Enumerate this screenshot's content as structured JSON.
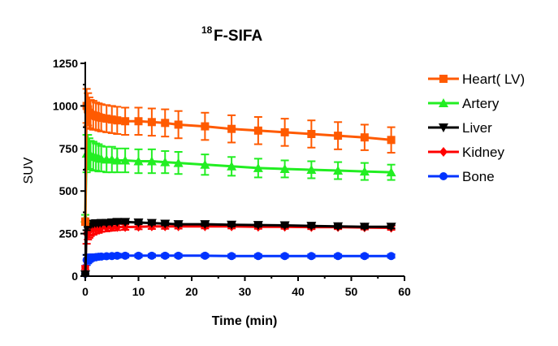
{
  "chart_data": {
    "type": "line",
    "title_superscript": "18",
    "title_main": "F-SIFA",
    "xlabel": "Time (min)",
    "ylabel": "SUV",
    "xlim": [
      0,
      60
    ],
    "ylim": [
      0,
      1250
    ],
    "x_ticks": [
      0,
      10,
      20,
      30,
      40,
      50,
      60
    ],
    "y_ticks": [
      0,
      250,
      500,
      750,
      1000,
      1250
    ],
    "legend_position": "right",
    "series": [
      {
        "name": "Heart( LV)",
        "color": "#ff5a00",
        "marker": "square",
        "x": [
          0,
          0.25,
          0.5,
          0.75,
          1,
          1.5,
          2,
          2.5,
          3,
          4,
          5,
          6,
          7.5,
          10,
          12.5,
          15,
          17.5,
          22.5,
          27.5,
          32.5,
          37.5,
          42.5,
          47.5,
          52.5,
          57.5
        ],
        "y": [
          320,
          1000,
          980,
          960,
          950,
          945,
          940,
          935,
          930,
          925,
          920,
          915,
          910,
          910,
          905,
          900,
          890,
          880,
          865,
          855,
          845,
          835,
          825,
          815,
          800
        ],
        "err": [
          20,
          100,
          95,
          90,
          85,
          85,
          80,
          80,
          80,
          80,
          80,
          80,
          80,
          80,
          80,
          80,
          80,
          80,
          80,
          80,
          80,
          80,
          80,
          75,
          75
        ]
      },
      {
        "name": "Artery",
        "color": "#22ee22",
        "marker": "triangle-up",
        "x": [
          0,
          0.25,
          0.5,
          0.75,
          1,
          1.5,
          2,
          2.5,
          3,
          4,
          5,
          6,
          7.5,
          10,
          12.5,
          15,
          17.5,
          22.5,
          27.5,
          32.5,
          37.5,
          42.5,
          47.5,
          52.5,
          57.5
        ],
        "y": [
          340,
          720,
          730,
          720,
          710,
          705,
          700,
          695,
          690,
          685,
          685,
          680,
          680,
          675,
          675,
          670,
          665,
          655,
          645,
          635,
          630,
          625,
          620,
          615,
          610
        ],
        "err": [
          20,
          110,
          100,
          90,
          85,
          85,
          80,
          80,
          75,
          75,
          75,
          70,
          70,
          70,
          70,
          65,
          65,
          60,
          55,
          55,
          50,
          50,
          50,
          50,
          45
        ]
      },
      {
        "name": "Liver",
        "color": "#000000",
        "marker": "triangle-down",
        "x": [
          0,
          0.25,
          0.5,
          0.75,
          1,
          1.5,
          2,
          2.5,
          3,
          4,
          5,
          6,
          7.5,
          10,
          12.5,
          15,
          17.5,
          22.5,
          27.5,
          32.5,
          37.5,
          42.5,
          47.5,
          52.5,
          57.5
        ],
        "y": [
          10,
          290,
          300,
          305,
          305,
          308,
          310,
          310,
          312,
          312,
          315,
          318,
          318,
          315,
          312,
          308,
          305,
          305,
          302,
          300,
          298,
          295,
          292,
          290,
          290
        ],
        "err": [
          5,
          20,
          15,
          12,
          10,
          10,
          10,
          10,
          10,
          10,
          10,
          10,
          10,
          10,
          10,
          10,
          10,
          10,
          10,
          10,
          10,
          10,
          10,
          10,
          10
        ]
      },
      {
        "name": "Kidney",
        "color": "#ff0000",
        "marker": "diamond",
        "x": [
          0,
          0.25,
          0.5,
          0.75,
          1,
          1.5,
          2,
          2.5,
          3,
          4,
          5,
          6,
          7.5,
          10,
          12.5,
          15,
          17.5,
          22.5,
          27.5,
          32.5,
          37.5,
          42.5,
          47.5,
          52.5,
          57.5
        ],
        "y": [
          50,
          250,
          265,
          270,
          275,
          278,
          280,
          282,
          285,
          285,
          287,
          288,
          288,
          290,
          292,
          292,
          292,
          292,
          292,
          290,
          290,
          288,
          288,
          286,
          284
        ],
        "err": [
          10,
          60,
          50,
          45,
          40,
          35,
          30,
          28,
          25,
          22,
          20,
          18,
          16,
          15,
          15,
          14,
          13,
          12,
          12,
          12,
          12,
          12,
          12,
          12,
          12
        ]
      },
      {
        "name": "Bone",
        "color": "#0033ff",
        "marker": "circle",
        "x": [
          0,
          0.25,
          0.5,
          0.75,
          1,
          1.5,
          2,
          2.5,
          3,
          4,
          5,
          6,
          7.5,
          10,
          12.5,
          15,
          17.5,
          22.5,
          27.5,
          32.5,
          37.5,
          42.5,
          47.5,
          52.5,
          57.5
        ],
        "y": [
          15,
          95,
          100,
          105,
          108,
          110,
          112,
          114,
          115,
          117,
          118,
          120,
          120,
          120,
          120,
          120,
          120,
          120,
          118,
          118,
          118,
          118,
          118,
          118,
          118
        ],
        "err": [
          8,
          30,
          25,
          22,
          20,
          18,
          16,
          15,
          14,
          13,
          12,
          12,
          11,
          10,
          10,
          10,
          10,
          10,
          10,
          10,
          10,
          10,
          10,
          10,
          10
        ]
      }
    ]
  }
}
